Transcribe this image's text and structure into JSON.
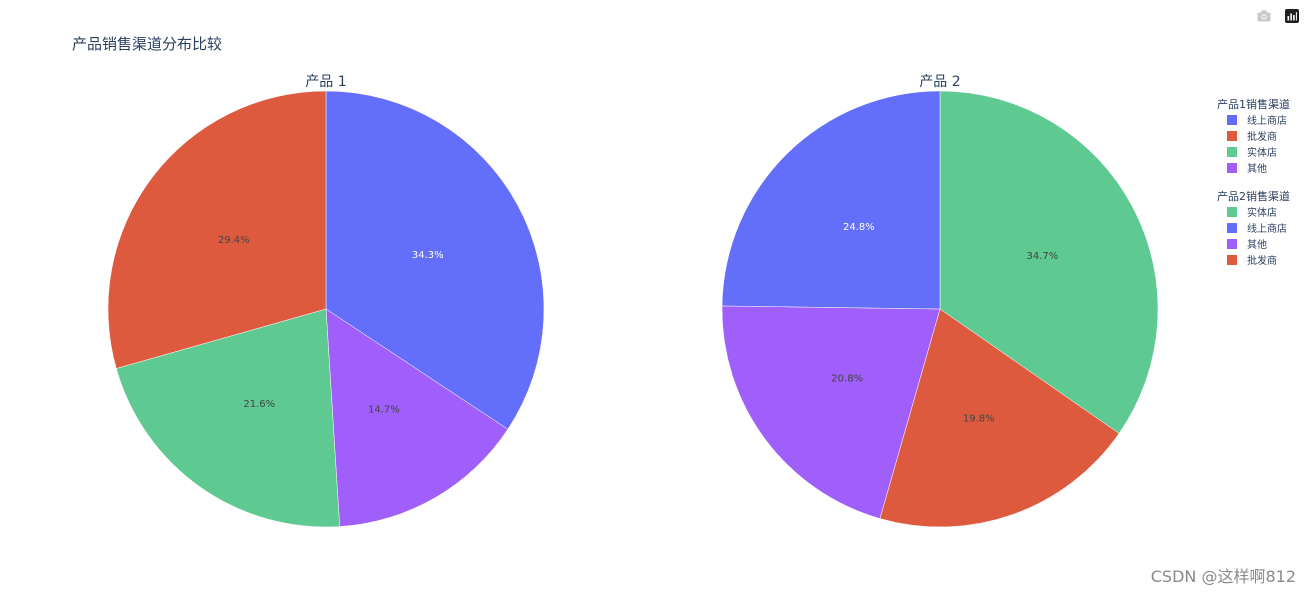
{
  "modebar": {
    "camera_icon": "camera-icon",
    "plotly_icon": "plotly-logo-icon"
  },
  "watermark": "CSDN @这样啊812",
  "chart_data": {
    "type": "pie",
    "title": "产品销售渠道分布比较",
    "colors": {
      "线上商店": "#636efa",
      "批发商": "#dd5a3e",
      "实体店": "#5ec991",
      "其他": "#a05ffa"
    },
    "pies": [
      {
        "name": "产品 1",
        "legend_title": "产品1销售渠道",
        "slices": [
          {
            "label": "线上商店",
            "value": 34.3,
            "text": "34.3%"
          },
          {
            "label": "批发商",
            "value": 29.4,
            "text": "29.4%"
          },
          {
            "label": "实体店",
            "value": 21.6,
            "text": "21.6%"
          },
          {
            "label": "其他",
            "value": 14.7,
            "text": "14.7%"
          }
        ],
        "draw_order": [
          "线上商店",
          "其他",
          "实体店",
          "批发商"
        ]
      },
      {
        "name": "产品 2",
        "legend_title": "产品2销售渠道",
        "slices": [
          {
            "label": "实体店",
            "value": 34.7,
            "text": "34.7%"
          },
          {
            "label": "线上商店",
            "value": 24.8,
            "text": "24.8%"
          },
          {
            "label": "其他",
            "value": 20.8,
            "text": "20.8%"
          },
          {
            "label": "批发商",
            "value": 19.8,
            "text": "19.8%"
          }
        ],
        "draw_order": [
          "实体店",
          "批发商",
          "其他",
          "线上商店"
        ]
      }
    ],
    "legend_position": "right"
  }
}
